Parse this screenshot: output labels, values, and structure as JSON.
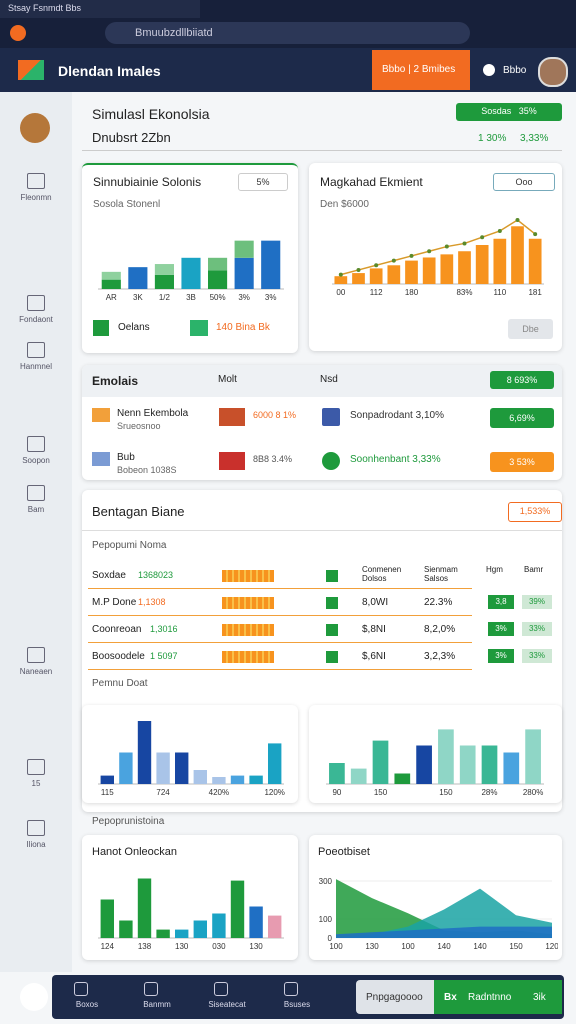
{
  "browser": {
    "tab": "Stsay Fsnmdt Bbs",
    "url": "Bmuubzdllbiiatd"
  },
  "header": {
    "brand": "Dlendan Imales",
    "button": "Bbbo | 2 Bmibes",
    "user": "Bbbo"
  },
  "sidebar": [
    "Fleonmn",
    "Fondaont",
    "Hanmnel",
    "Soopon",
    "Bam",
    "Naneaen",
    "15",
    "Iliona"
  ],
  "page": {
    "title": "Simulasl Ekonolsia",
    "subtitle": "Dnubsrt 2Zbn",
    "badge": "Sosdas",
    "badge_value": "35%",
    "stat1": "1 30%",
    "stat2": "3,33%"
  },
  "card_footers": {
    "left1": "Oelans",
    "left2": "140 Bina Bk",
    "right_button": "Dbe"
  },
  "table1": {
    "headers": [
      "Emolais",
      "Molt",
      "Nsd"
    ],
    "badge": "8 693%",
    "rows": [
      {
        "name": "Nenn Ekembola",
        "sub": "Srueosnoo",
        "value": "6000 8 1%",
        "item": "Sonpadrodant 3,10%",
        "badge": "6,69%"
      },
      {
        "name": "Bub",
        "sub": "Bobeon 1038S",
        "value": "8B8 3.4%",
        "item": "Soonhenbant 3,33%",
        "badge": "3 53%"
      }
    ]
  },
  "table2": {
    "title": "Bentagan Biane",
    "badge": "1,533%",
    "subtitle": "Pepopumi Noma",
    "headers": [
      "Conmenen Dolsos",
      "Sienmam Salsos",
      "Hgm",
      "Bamr"
    ],
    "rows": [
      {
        "name": "Soxdae",
        "metric": "1368023"
      },
      {
        "name": "M.P Done",
        "metric": "1,1308",
        "v1": "8,0WI",
        "v2": "22.3%",
        "b1": "3,8",
        "b2": "39%"
      },
      {
        "name": "Coonreoan",
        "metric": "1,3016",
        "v1": "$,8NI",
        "v2": "8,2,0%",
        "b1": "3%",
        "b2": "33%"
      },
      {
        "name": "Boosoodele",
        "metric": "1 5097",
        "v1": "$,6NI",
        "v2": "3,2,3%",
        "b1": "3%",
        "b2": "33%"
      }
    ],
    "section2": "Pemnu Doat"
  },
  "section3": "Pepoprunistoina",
  "nav": {
    "items": [
      "Boxos",
      "Banmm",
      "Siseatecat",
      "Bsuses"
    ],
    "search": "Pnpgagoooo",
    "code": "Bx",
    "action": "Radntnno",
    "extra": "3ik"
  },
  "chart_data": [
    {
      "type": "bar",
      "stacked": true,
      "title": "Sinnubiainie Solonis",
      "subtitle": "Sosola Stonenl",
      "badge": "5%",
      "ylim": [
        0,
        100
      ],
      "categories": [
        "AR",
        "3K",
        "1/2",
        "3B",
        "50%",
        "3%",
        "3%"
      ],
      "series": [
        {
          "values": [
            12,
            28,
            18,
            40,
            24,
            40,
            62
          ],
          "colors": [
            "#1e9a3c",
            "#1f6fc4",
            "#1e9a3c",
            "#1aa3c4",
            "#1e9a3c",
            "#1f6fc4",
            "#1f6fc4"
          ]
        },
        {
          "values": [
            10,
            0,
            14,
            0,
            16,
            22,
            0
          ],
          "colors": [
            "#8fd19e",
            "#8fd19e",
            "#8fd19e",
            "#8fd19e",
            "#6dbf7d",
            "#6dbf7d",
            "#8fd19e"
          ]
        }
      ]
    },
    {
      "type": "bar",
      "title": "Magkahad Ekmient",
      "subtitle": "Den $6000",
      "button": "Ooo",
      "ylim": [
        0,
        100
      ],
      "categories": [
        "00",
        null,
        "112",
        null,
        "180",
        null,
        null,
        "83%",
        null,
        "110",
        null,
        "181"
      ],
      "series": [
        {
          "color": "#f7931e",
          "values": [
            10,
            14,
            20,
            24,
            30,
            34,
            38,
            42,
            50,
            58,
            74,
            58
          ]
        },
        {
          "type": "line",
          "color": "#d89a2a",
          "values": [
            12,
            18,
            24,
            30,
            36,
            42,
            48,
            52,
            60,
            68,
            82,
            64
          ]
        }
      ]
    },
    {
      "type": "bar",
      "ylim": [
        0,
        100
      ],
      "categories": [
        "115",
        null,
        null,
        "724",
        null,
        null,
        "420%",
        null,
        null,
        "120%"
      ],
      "series": [
        {
          "values": [
            12,
            45,
            90,
            45,
            45,
            20,
            10,
            12,
            12,
            58
          ],
          "colors": [
            "#1746a2",
            "#4aa3df",
            "#1746a2",
            "#a9c4e8",
            "#1746a2",
            "#a9c4e8",
            "#a9c4e8",
            "#4aa3df",
            "#1aa3c4",
            "#1aa3c4"
          ]
        }
      ]
    },
    {
      "type": "bar",
      "ylim": [
        0,
        100
      ],
      "categories": [
        "90",
        null,
        "150",
        null,
        null,
        "150",
        null,
        "28%",
        null,
        "280%"
      ],
      "series": [
        {
          "values": [
            30,
            22,
            62,
            15,
            55,
            78,
            55,
            55,
            45,
            78
          ],
          "colors": [
            "#3ab795",
            "#8fd6c6",
            "#3ab795",
            "#1e9a3c",
            "#1746a2",
            "#8fd6c6",
            "#8fd6c6",
            "#3ab795",
            "#4aa3df",
            "#8fd6c6"
          ]
        }
      ]
    },
    {
      "type": "bar",
      "title": "Hanot Onleockan",
      "ylim": [
        0,
        100
      ],
      "categories": [
        "124",
        null,
        "138",
        null,
        "130",
        null,
        "030",
        null,
        "130",
        null
      ],
      "series": [
        {
          "values": [
            55,
            25,
            85,
            12,
            12,
            25,
            35,
            82,
            45,
            32
          ],
          "colors": [
            "#1e9a3c",
            "#1e9a3c",
            "#1e9a3c",
            "#1e9a3c",
            "#1aa3c4",
            "#1aa3c4",
            "#1aa3c4",
            "#1e9a3c",
            "#1f6fc4",
            "#e79bb0"
          ]
        }
      ]
    },
    {
      "type": "area",
      "title": "Poeotbiset",
      "ylim": [
        0,
        400
      ],
      "yticks": [
        0,
        100,
        300
      ],
      "categories": [
        "100",
        "130",
        "100",
        "140",
        "140",
        "150",
        "120"
      ],
      "series": [
        {
          "color": "#1e9a3c",
          "values": [
            310,
            210,
            130,
            40,
            30,
            40,
            20
          ]
        },
        {
          "color": "#1aa3a3",
          "values": [
            0,
            20,
            60,
            150,
            260,
            120,
            80
          ]
        },
        {
          "color": "#1f6fc4",
          "values": [
            20,
            30,
            40,
            50,
            60,
            60,
            60
          ]
        }
      ]
    }
  ]
}
